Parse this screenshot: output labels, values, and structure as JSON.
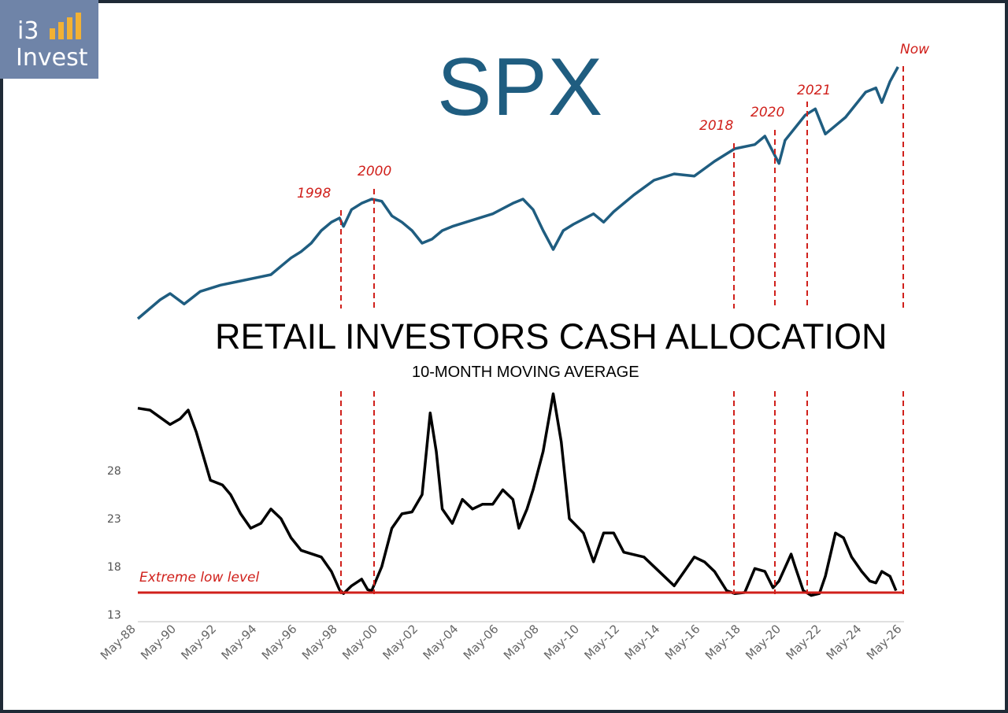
{
  "logo": {
    "line1": "i3",
    "line2": "Invest",
    "accent": "#f2b134",
    "bg": "#6f84a8"
  },
  "spx_title": "SPX",
  "cash_title": "RETAIL INVESTORS CASH ALLOCATION",
  "cash_subtitle": "10-MONTH MOVING AVERAGE",
  "extreme_label": "Extreme low level",
  "colors": {
    "spx": "#1f5d80",
    "cash": "#000000",
    "marker": "#d0201b"
  },
  "chart_data": [
    {
      "type": "line",
      "title": "SPX",
      "series": [
        {
          "values": [
            [
              1988.4,
              0
            ],
            [
              1989.5,
              0.09
            ],
            [
              1990.0,
              0.12
            ],
            [
              1990.7,
              0.07
            ],
            [
              1991.5,
              0.13
            ],
            [
              1992.5,
              0.16
            ],
            [
              1993.5,
              0.18
            ],
            [
              1994.5,
              0.2
            ],
            [
              1995.0,
              0.21
            ],
            [
              1995.5,
              0.25
            ],
            [
              1996.0,
              0.29
            ],
            [
              1996.5,
              0.32
            ],
            [
              1997.0,
              0.36
            ],
            [
              1997.5,
              0.42
            ],
            [
              1998.0,
              0.46
            ],
            [
              1998.4,
              0.48
            ],
            [
              1998.6,
              0.44
            ],
            [
              1999.0,
              0.52
            ],
            [
              1999.5,
              0.55
            ],
            [
              2000.0,
              0.57
            ],
            [
              2000.5,
              0.56
            ],
            [
              2001.0,
              0.49
            ],
            [
              2001.5,
              0.46
            ],
            [
              2002.0,
              0.42
            ],
            [
              2002.5,
              0.36
            ],
            [
              2003.0,
              0.38
            ],
            [
              2003.5,
              0.42
            ],
            [
              2004.0,
              0.44
            ],
            [
              2005.0,
              0.47
            ],
            [
              2006.0,
              0.5
            ],
            [
              2007.0,
              0.55
            ],
            [
              2007.5,
              0.57
            ],
            [
              2008.0,
              0.52
            ],
            [
              2008.5,
              0.42
            ],
            [
              2009.0,
              0.33
            ],
            [
              2009.5,
              0.42
            ],
            [
              2010.0,
              0.45
            ],
            [
              2011.0,
              0.5
            ],
            [
              2011.5,
              0.46
            ],
            [
              2012.0,
              0.51
            ],
            [
              2013.0,
              0.59
            ],
            [
              2014.0,
              0.66
            ],
            [
              2015.0,
              0.69
            ],
            [
              2016.0,
              0.68
            ],
            [
              2017.0,
              0.75
            ],
            [
              2018.0,
              0.81
            ],
            [
              2019.0,
              0.83
            ],
            [
              2019.5,
              0.87
            ],
            [
              2020.2,
              0.74
            ],
            [
              2020.5,
              0.85
            ],
            [
              2021.0,
              0.91
            ],
            [
              2021.5,
              0.97
            ],
            [
              2022.0,
              1.0
            ],
            [
              2022.5,
              0.88
            ],
            [
              2023.0,
              0.92
            ],
            [
              2023.5,
              0.96
            ],
            [
              2024.0,
              1.02
            ],
            [
              2024.5,
              1.08
            ],
            [
              2025.0,
              1.1
            ],
            [
              2025.3,
              1.03
            ],
            [
              2025.7,
              1.13
            ],
            [
              2026.1,
              1.2
            ]
          ]
        }
      ],
      "annotations": [
        "1998",
        "2000",
        "2018",
        "2020",
        "2021",
        "Now"
      ]
    },
    {
      "type": "line",
      "title": "RETAIL INVESTORS CASH ALLOCATION",
      "subtitle": "10-MONTH MOVING AVERAGE",
      "x_ticks": [
        "May-88",
        "May-90",
        "May-92",
        "May-94",
        "May-96",
        "May-98",
        "May-00",
        "May-02",
        "May-04",
        "May-06",
        "May-08",
        "May-10",
        "May-12",
        "May-14",
        "May-16",
        "May-18",
        "May-20",
        "May-22",
        "May-24",
        "May-26"
      ],
      "y_ticks": [
        13,
        18,
        23,
        28
      ],
      "ylim": [
        13,
        37
      ],
      "series": [
        {
          "values": [
            [
              1988.4,
              34.5
            ],
            [
              1989.0,
              34.3
            ],
            [
              1990.0,
              32.8
            ],
            [
              1990.5,
              33.4
            ],
            [
              1990.9,
              34.3
            ],
            [
              1991.3,
              32.0
            ],
            [
              1992.0,
              27.0
            ],
            [
              1992.6,
              26.5
            ],
            [
              1993.0,
              25.5
            ],
            [
              1993.5,
              23.5
            ],
            [
              1994.0,
              22.0
            ],
            [
              1994.5,
              22.5
            ],
            [
              1995.0,
              24.0
            ],
            [
              1995.5,
              23.0
            ],
            [
              1996.0,
              21.0
            ],
            [
              1996.5,
              19.7
            ],
            [
              1997.5,
              19.0
            ],
            [
              1998.0,
              17.5
            ],
            [
              1998.4,
              15.6
            ],
            [
              1998.6,
              15.2
            ],
            [
              1999.0,
              16.0
            ],
            [
              1999.5,
              16.7
            ],
            [
              1999.8,
              15.6
            ],
            [
              2000.0,
              15.5
            ],
            [
              2000.5,
              18.0
            ],
            [
              2001.0,
              22.0
            ],
            [
              2001.5,
              23.5
            ],
            [
              2002.0,
              23.7
            ],
            [
              2002.5,
              25.5
            ],
            [
              2002.9,
              34.0
            ],
            [
              2003.2,
              30.0
            ],
            [
              2003.5,
              24.0
            ],
            [
              2004.0,
              22.5
            ],
            [
              2004.5,
              25.0
            ],
            [
              2005.0,
              24.0
            ],
            [
              2005.5,
              24.5
            ],
            [
              2006.0,
              24.5
            ],
            [
              2006.5,
              26.0
            ],
            [
              2007.0,
              25.0
            ],
            [
              2007.3,
              22.0
            ],
            [
              2007.7,
              24.0
            ],
            [
              2008.0,
              26.0
            ],
            [
              2008.5,
              30.0
            ],
            [
              2009.0,
              36.0
            ],
            [
              2009.4,
              31.0
            ],
            [
              2009.8,
              23.0
            ],
            [
              2010.5,
              21.5
            ],
            [
              2011.0,
              18.5
            ],
            [
              2011.5,
              21.5
            ],
            [
              2012.0,
              21.5
            ],
            [
              2012.5,
              19.5
            ],
            [
              2013.5,
              19.0
            ],
            [
              2014.5,
              17.0
            ],
            [
              2015.0,
              16.0
            ],
            [
              2015.5,
              17.5
            ],
            [
              2016.0,
              19.0
            ],
            [
              2016.5,
              18.5
            ],
            [
              2017.0,
              17.5
            ],
            [
              2017.6,
              15.5
            ],
            [
              2018.0,
              15.2
            ],
            [
              2018.5,
              15.3
            ],
            [
              2019.0,
              17.8
            ],
            [
              2019.5,
              17.5
            ],
            [
              2019.9,
              15.8
            ],
            [
              2020.2,
              16.5
            ],
            [
              2020.8,
              19.3
            ],
            [
              2021.0,
              18.0
            ],
            [
              2021.4,
              15.5
            ],
            [
              2021.8,
              15.0
            ],
            [
              2022.2,
              15.2
            ],
            [
              2022.5,
              17.0
            ],
            [
              2023.0,
              21.5
            ],
            [
              2023.4,
              21.0
            ],
            [
              2023.8,
              19.0
            ],
            [
              2024.3,
              17.5
            ],
            [
              2024.7,
              16.5
            ],
            [
              2025.0,
              16.3
            ],
            [
              2025.3,
              17.5
            ],
            [
              2025.7,
              17.0
            ],
            [
              2026.0,
              15.5
            ]
          ]
        }
      ],
      "annotations": [
        "Extreme low level"
      ]
    }
  ]
}
